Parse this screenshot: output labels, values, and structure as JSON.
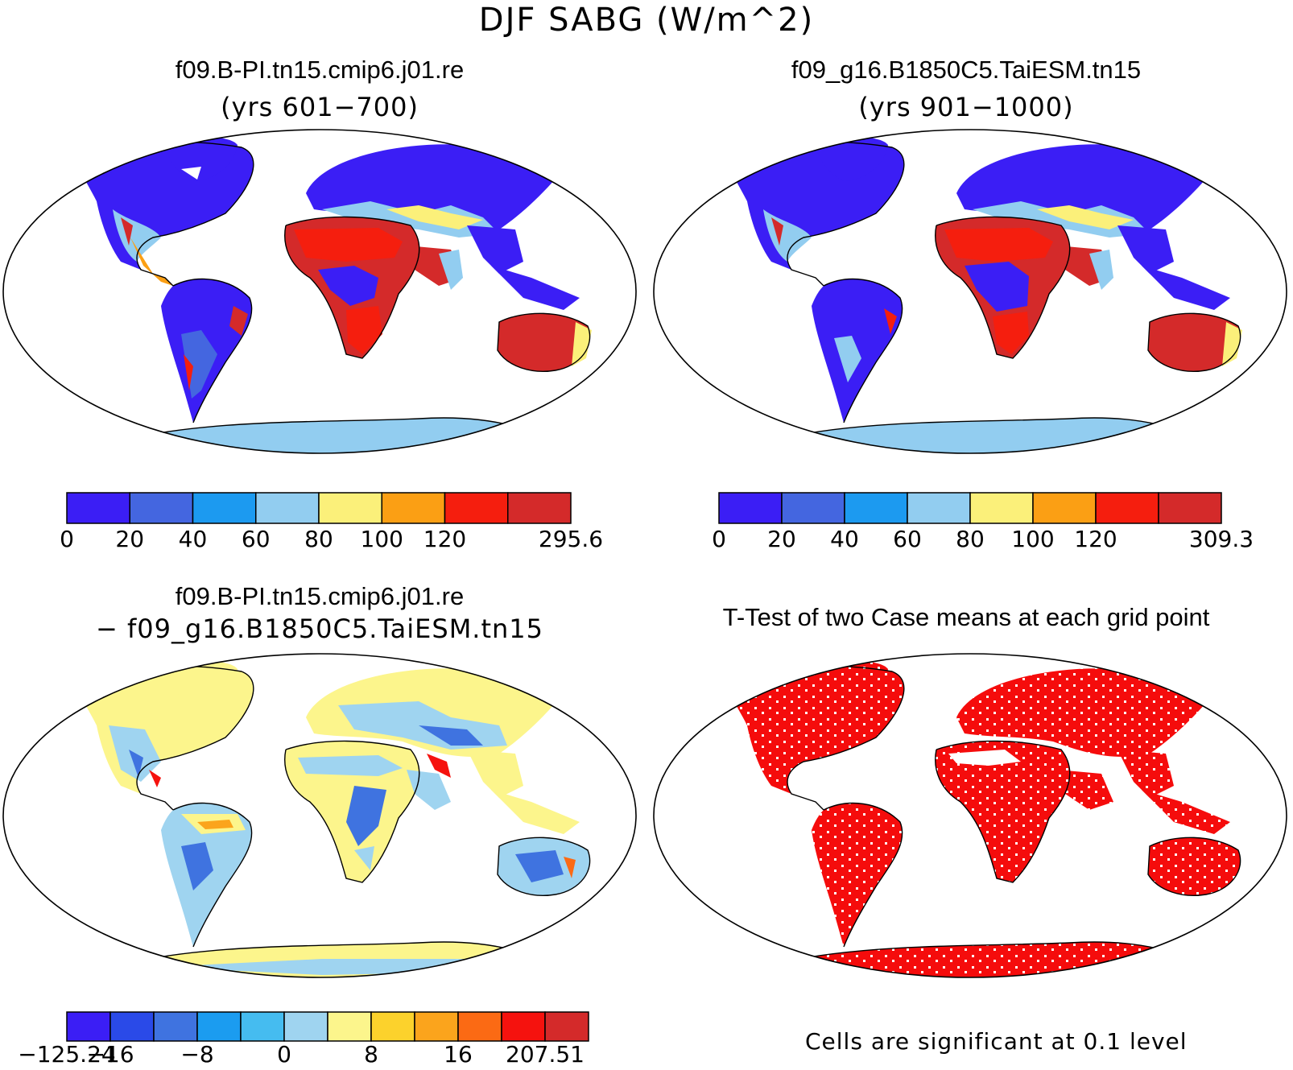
{
  "title": "DJF SABG (W/m^2)",
  "panels": {
    "case1": {
      "title": "f09.B-PI.tn15.cmip6.j01.re",
      "subtitle": "(yrs 601−700)",
      "colorbar": {
        "colors": [
          "#3b1ef5",
          "#4466e0",
          "#1c9af0",
          "#92cdf0",
          "#fbf07a",
          "#fb9f14",
          "#f51e0e",
          "#d42a2a"
        ],
        "labels": [
          "0",
          "20",
          "40",
          "60",
          "80",
          "100",
          "120",
          "",
          "295.6"
        ]
      }
    },
    "case2": {
      "title": "f09_g16.B1850C5.TaiESM.tn15",
      "subtitle": "(yrs 901−1000)",
      "colorbar": {
        "colors": [
          "#3b1ef5",
          "#4466e0",
          "#1c9af0",
          "#92cdf0",
          "#fbf07a",
          "#fb9f14",
          "#f51e0e",
          "#d42a2a"
        ],
        "labels": [
          "0",
          "20",
          "40",
          "60",
          "80",
          "100",
          "120",
          "",
          "309.3"
        ]
      }
    },
    "diff": {
      "title": "f09.B-PI.tn15.cmip6.j01.re",
      "subtitle": "− f09_g16.B1850C5.TaiESM.tn15",
      "colorbar": {
        "colors": [
          "#3b1ef5",
          "#2a4ae8",
          "#3f73e0",
          "#1b9cf0",
          "#45bcf0",
          "#9fd4f0",
          "#fcf58c",
          "#fcd22c",
          "#fba41c",
          "#fb6a14",
          "#f5120e",
          "#d42a2a"
        ],
        "labels": [
          "−125.24",
          "−16",
          "",
          "−8",
          "",
          "0",
          "",
          "8",
          "",
          "16",
          "",
          "207.51"
        ]
      }
    },
    "ttest": {
      "title": "T-Test of two Case means at each grid point",
      "note": "Cells are significant at 0.1 level"
    }
  }
}
